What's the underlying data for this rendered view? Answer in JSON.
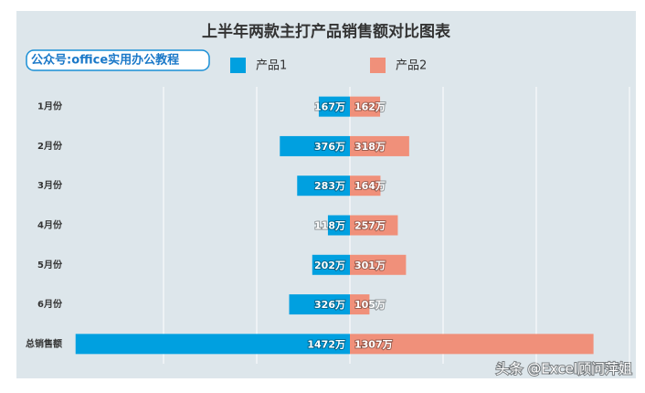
{
  "chart_data": {
    "type": "butterfly",
    "title": "上半年两款主打产品销售额对比图表",
    "badge": "公众号:office实用办公教程",
    "watermark": "头条 @Excel顾问萍姐",
    "categories": [
      "1月份",
      "2月份",
      "3月份",
      "4月份",
      "5月份",
      "6月份",
      "总销售额"
    ],
    "series": [
      {
        "name": "产品1",
        "color": "#00a0e0",
        "side": "left",
        "values": [
          167,
          376,
          283,
          118,
          202,
          326,
          1472
        ],
        "value_labels": [
          "167万",
          "376万",
          "283万",
          "118万",
          "202万",
          "326万",
          "1472万"
        ]
      },
      {
        "name": "产品2",
        "color": "#f0907a",
        "side": "right",
        "values": [
          162,
          318,
          164,
          257,
          301,
          105,
          1307
        ],
        "value_labels": [
          "162万",
          "318万",
          "164万",
          "257万",
          "301万",
          "105万",
          "1307万"
        ]
      }
    ],
    "xlim": [
      -1500,
      1500
    ],
    "gridlines": [
      -1000,
      -500,
      0,
      500,
      1000,
      1500
    ],
    "grid": true
  }
}
